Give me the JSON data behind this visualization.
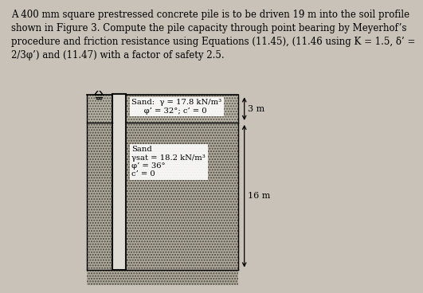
{
  "title_text": "A 400 mm square prestressed concrete pile is to be driven 19 m into the soil profile\nshown in Figure 3. Compute the pile capacity through point bearing by Meyerhof’s\nprocedure and friction resistance using Equations (11.45), (11.46 using K = 1.5, δ’ =\n2/3φ’) and (11.47) with a factor of safety 2.5.",
  "title_fontsize": 8.5,
  "bg_color": "#c8c2b8",
  "soil_hatch_color": "#888878",
  "pile_color": "#dedad4",
  "pile_border": "#111111",
  "layer1_label_line1": "Sand:  γ = 17.8 kN/m³",
  "layer1_label_line2": "φ’ = 32°; c’ = 0",
  "layer2_label": "Sand\nγsat = 18.2 kN/m³\nφ’ = 36°\nc’ = 0",
  "dim1": "3 m",
  "dim2": "16 m"
}
